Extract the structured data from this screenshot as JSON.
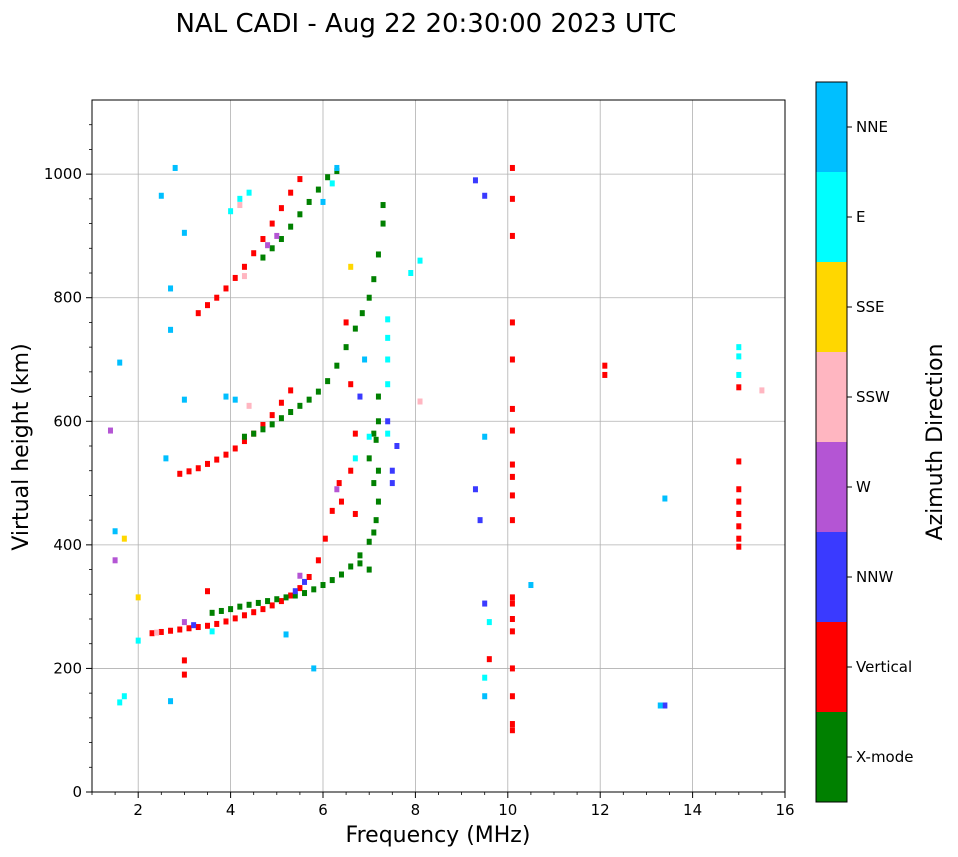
{
  "chart_data": {
    "type": "scatter",
    "title": "NAL CADI - Aug 22 20:30:00 2023 UTC",
    "xlabel": "Frequency (MHz)",
    "ylabel": "Virtual height (km)",
    "xlim": [
      1,
      16
    ],
    "ylim": [
      0,
      1120
    ],
    "xticks": [
      2,
      4,
      6,
      8,
      10,
      12,
      14,
      16
    ],
    "yticks": [
      0,
      200,
      400,
      600,
      800,
      1000
    ],
    "grid": true,
    "colorbar": {
      "label": "Azimuth Direction",
      "categories": [
        {
          "name": "X-mode",
          "color": "#008000"
        },
        {
          "name": "Vertical",
          "color": "#ff0000"
        },
        {
          "name": "NNW",
          "color": "#3a3aff"
        },
        {
          "name": "W",
          "color": "#b455d4"
        },
        {
          "name": "SSW",
          "color": "#ffb6c1"
        },
        {
          "name": "SSE",
          "color": "#ffd700"
        },
        {
          "name": "E",
          "color": "#00ffff"
        },
        {
          "name": "NNE",
          "color": "#00bfff"
        }
      ]
    },
    "traces": [
      {
        "name": "Vertical",
        "color": "#ff0000",
        "points": [
          [
            2.3,
            257
          ],
          [
            2.5,
            259
          ],
          [
            2.7,
            261
          ],
          [
            2.9,
            263
          ],
          [
            3.1,
            265
          ],
          [
            3.3,
            267
          ],
          [
            3.5,
            269
          ],
          [
            3.7,
            272
          ],
          [
            3.9,
            276
          ],
          [
            4.1,
            281
          ],
          [
            4.3,
            286
          ],
          [
            4.5,
            291
          ],
          [
            4.7,
            296
          ],
          [
            4.9,
            302
          ],
          [
            5.1,
            309
          ],
          [
            5.3,
            318
          ],
          [
            5.5,
            330
          ],
          [
            5.7,
            348
          ],
          [
            5.9,
            375
          ],
          [
            6.05,
            410
          ],
          [
            6.2,
            455
          ],
          [
            6.35,
            500
          ],
          [
            2.9,
            515
          ],
          [
            3.1,
            519
          ],
          [
            3.3,
            524
          ],
          [
            3.5,
            531
          ],
          [
            3.7,
            538
          ],
          [
            3.9,
            546
          ],
          [
            4.1,
            556
          ],
          [
            4.3,
            568
          ],
          [
            4.5,
            580
          ],
          [
            4.7,
            594
          ],
          [
            4.9,
            610
          ],
          [
            5.1,
            630
          ],
          [
            5.3,
            650
          ],
          [
            3.3,
            775
          ],
          [
            3.5,
            788
          ],
          [
            3.7,
            800
          ],
          [
            3.9,
            815
          ],
          [
            4.1,
            832
          ],
          [
            4.3,
            850
          ],
          [
            4.5,
            872
          ],
          [
            4.7,
            895
          ],
          [
            4.9,
            920
          ],
          [
            5.1,
            945
          ],
          [
            5.3,
            970
          ],
          [
            5.5,
            992
          ],
          [
            6.5,
            760
          ],
          [
            6.6,
            660
          ],
          [
            6.7,
            580
          ],
          [
            6.6,
            520
          ],
          [
            6.4,
            470
          ],
          [
            6.7,
            450
          ],
          [
            10.1,
            1010
          ],
          [
            10.1,
            960
          ],
          [
            10.1,
            900
          ],
          [
            10.1,
            760
          ],
          [
            10.1,
            700
          ],
          [
            10.1,
            620
          ],
          [
            10.1,
            585
          ],
          [
            10.1,
            530
          ],
          [
            10.1,
            510
          ],
          [
            10.1,
            480
          ],
          [
            10.1,
            440
          ],
          [
            10.1,
            315
          ],
          [
            10.1,
            305
          ],
          [
            10.1,
            280
          ],
          [
            10.1,
            260
          ],
          [
            10.1,
            200
          ],
          [
            10.1,
            155
          ],
          [
            10.1,
            110
          ],
          [
            10.1,
            100
          ],
          [
            12.1,
            690
          ],
          [
            12.1,
            675
          ],
          [
            15.0,
            655
          ],
          [
            15.0,
            535
          ],
          [
            15.0,
            490
          ],
          [
            15.0,
            470
          ],
          [
            15.0,
            450
          ],
          [
            15.0,
            430
          ],
          [
            15.0,
            410
          ],
          [
            15.0,
            397
          ],
          [
            9.6,
            215
          ],
          [
            3.0,
            213
          ],
          [
            3.0,
            190
          ],
          [
            3.5,
            325
          ]
        ]
      },
      {
        "name": "X-mode",
        "color": "#008000",
        "points": [
          [
            3.6,
            290
          ],
          [
            3.8,
            293
          ],
          [
            4.0,
            296
          ],
          [
            4.2,
            300
          ],
          [
            4.4,
            303
          ],
          [
            4.6,
            306
          ],
          [
            4.8,
            309
          ],
          [
            5.0,
            312
          ],
          [
            5.2,
            315
          ],
          [
            5.4,
            318
          ],
          [
            5.6,
            322
          ],
          [
            5.8,
            328
          ],
          [
            6.0,
            335
          ],
          [
            6.2,
            343
          ],
          [
            6.4,
            352
          ],
          [
            6.6,
            365
          ],
          [
            6.8,
            383
          ],
          [
            7.0,
            405
          ],
          [
            7.1,
            420
          ],
          [
            7.15,
            440
          ],
          [
            7.2,
            470
          ],
          [
            7.2,
            520
          ],
          [
            7.15,
            570
          ],
          [
            4.3,
            575
          ],
          [
            4.5,
            580
          ],
          [
            4.7,
            587
          ],
          [
            4.9,
            595
          ],
          [
            5.1,
            605
          ],
          [
            5.3,
            615
          ],
          [
            5.5,
            625
          ],
          [
            5.7,
            635
          ],
          [
            5.9,
            648
          ],
          [
            6.1,
            665
          ],
          [
            6.3,
            690
          ],
          [
            6.5,
            720
          ],
          [
            6.7,
            750
          ],
          [
            6.85,
            775
          ],
          [
            7.0,
            800
          ],
          [
            7.1,
            830
          ],
          [
            7.2,
            870
          ],
          [
            7.3,
            920
          ],
          [
            7.3,
            950
          ],
          [
            4.7,
            865
          ],
          [
            4.9,
            880
          ],
          [
            5.1,
            895
          ],
          [
            5.3,
            915
          ],
          [
            5.5,
            935
          ],
          [
            5.7,
            955
          ],
          [
            5.9,
            975
          ],
          [
            6.1,
            995
          ],
          [
            6.3,
            1005
          ],
          [
            7.0,
            360
          ],
          [
            6.8,
            370
          ],
          [
            7.1,
            580
          ],
          [
            7.2,
            600
          ],
          [
            7.2,
            640
          ],
          [
            7.0,
            540
          ],
          [
            7.1,
            500
          ]
        ]
      },
      {
        "name": "NNW",
        "color": "#3a3aff",
        "points": [
          [
            3.2,
            270
          ],
          [
            5.4,
            325
          ],
          [
            5.6,
            340
          ],
          [
            7.5,
            500
          ],
          [
            7.5,
            520
          ],
          [
            7.6,
            560
          ],
          [
            7.4,
            600
          ],
          [
            9.3,
            490
          ],
          [
            9.4,
            440
          ],
          [
            9.5,
            305
          ],
          [
            9.5,
            965
          ],
          [
            9.3,
            990
          ],
          [
            13.4,
            140
          ],
          [
            6.8,
            640
          ]
        ]
      },
      {
        "name": "W",
        "color": "#b455d4",
        "points": [
          [
            1.4,
            585
          ],
          [
            1.5,
            375
          ],
          [
            3.0,
            275
          ],
          [
            4.8,
            885
          ],
          [
            5.0,
            900
          ],
          [
            5.5,
            350
          ],
          [
            6.3,
            490
          ]
        ]
      },
      {
        "name": "SSW",
        "color": "#ffb6c1",
        "points": [
          [
            4.2,
            950
          ],
          [
            4.4,
            625
          ],
          [
            4.3,
            835
          ],
          [
            2.4,
            258
          ],
          [
            8.1,
            632
          ],
          [
            15.5,
            650
          ]
        ]
      },
      {
        "name": "SSE",
        "color": "#ffd700",
        "points": [
          [
            2.0,
            315
          ],
          [
            1.7,
            410
          ],
          [
            6.6,
            850
          ]
        ]
      },
      {
        "name": "E",
        "color": "#00ffff",
        "points": [
          [
            2.0,
            245
          ],
          [
            4.0,
            940
          ],
          [
            4.2,
            960
          ],
          [
            4.4,
            970
          ],
          [
            6.2,
            985
          ],
          [
            7.4,
            580
          ],
          [
            7.4,
            660
          ],
          [
            7.4,
            700
          ],
          [
            7.4,
            735
          ],
          [
            7.4,
            765
          ],
          [
            6.7,
            540
          ],
          [
            9.5,
            185
          ],
          [
            9.6,
            275
          ],
          [
            15.0,
            720
          ],
          [
            15.0,
            705
          ],
          [
            15.0,
            675
          ],
          [
            7.0,
            575
          ],
          [
            7.9,
            840
          ],
          [
            8.1,
            860
          ],
          [
            3.6,
            260
          ],
          [
            1.7,
            155
          ],
          [
            1.6,
            145
          ]
        ]
      },
      {
        "name": "NNE",
        "color": "#00bfff",
        "points": [
          [
            1.6,
            695
          ],
          [
            2.8,
            1010
          ],
          [
            2.7,
            815
          ],
          [
            2.7,
            748
          ],
          [
            2.7,
            147
          ],
          [
            3.0,
            635
          ],
          [
            3.9,
            640
          ],
          [
            4.1,
            635
          ],
          [
            5.2,
            255
          ],
          [
            5.8,
            200
          ],
          [
            6.0,
            955
          ],
          [
            6.3,
            1010
          ],
          [
            6.9,
            700
          ],
          [
            9.5,
            155
          ],
          [
            9.5,
            575
          ],
          [
            10.5,
            335
          ],
          [
            13.4,
            475
          ],
          [
            13.3,
            140
          ],
          [
            1.5,
            422
          ],
          [
            2.6,
            540
          ],
          [
            2.5,
            965
          ],
          [
            3.0,
            905
          ]
        ]
      }
    ]
  }
}
